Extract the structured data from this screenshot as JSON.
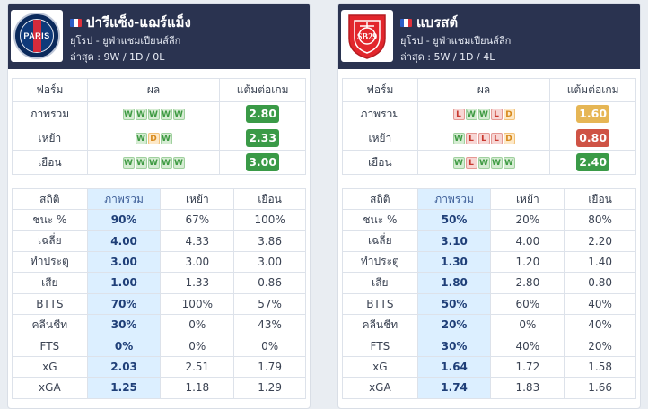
{
  "headers": {
    "form": {
      "col_form": "ฟอร์ม",
      "col_result": "ผล",
      "col_points": "แต้มต่อเกม"
    },
    "stats": {
      "col_stat": "สถิติ",
      "col_overall": "ภาพรวม",
      "col_home": "เหย้า",
      "col_away": "เยือน"
    }
  },
  "colors": {
    "green": "#3a9a47",
    "yellow": "#e6b655",
    "red": "#cf5345",
    "header_bg": "#2a3350",
    "highlight": "#dcefff"
  },
  "teams": [
    {
      "name": "ปารีแซ็ง-แฌร์แม็ง",
      "logo_icon": "psg-crest-icon",
      "logo_text": "PARIS",
      "flag": "france-flag-icon",
      "competition": "ยุโรป - ยูฟ่าแชมเปียนส์ลีก",
      "last": "ล่าสุด : 9W / 1D / 0L",
      "form": [
        {
          "label": "ภาพรวม",
          "results": [
            "W",
            "W",
            "W",
            "W",
            "W"
          ],
          "ppg": "2.80",
          "ppg_color": "green"
        },
        {
          "label": "เหย้า",
          "results": [
            "W",
            "D",
            "W"
          ],
          "ppg": "2.33",
          "ppg_color": "green"
        },
        {
          "label": "เยือน",
          "results": [
            "W",
            "W",
            "W",
            "W",
            "W"
          ],
          "ppg": "3.00",
          "ppg_color": "green"
        }
      ],
      "stats": [
        {
          "label": "ชนะ %",
          "overall": "90%",
          "home": "67%",
          "away": "100%"
        },
        {
          "label": "เฉลี่ย",
          "overall": "4.00",
          "home": "4.33",
          "away": "3.86"
        },
        {
          "label": "ทำประตู",
          "overall": "3.00",
          "home": "3.00",
          "away": "3.00"
        },
        {
          "label": "เสีย",
          "overall": "1.00",
          "home": "1.33",
          "away": "0.86"
        },
        {
          "label": "BTTS",
          "overall": "70%",
          "home": "100%",
          "away": "57%"
        },
        {
          "label": "คลีนชีท",
          "overall": "30%",
          "home": "0%",
          "away": "43%"
        },
        {
          "label": "FTS",
          "overall": "0%",
          "home": "0%",
          "away": "0%"
        },
        {
          "label": "xG",
          "overall": "2.03",
          "home": "2.51",
          "away": "1.79"
        },
        {
          "label": "xGA",
          "overall": "1.25",
          "home": "1.18",
          "away": "1.29"
        }
      ]
    },
    {
      "name": "แบรสต์",
      "logo_icon": "brest-crest-icon",
      "logo_text": "SB29",
      "flag": "france-flag-icon",
      "competition": "ยุโรป - ยูฟ่าแชมเปียนส์ลีก",
      "last": "ล่าสุด : 5W / 1D / 4L",
      "form": [
        {
          "label": "ภาพรวม",
          "results": [
            "L",
            "W",
            "W",
            "L",
            "D"
          ],
          "ppg": "1.60",
          "ppg_color": "yellow"
        },
        {
          "label": "เหย้า",
          "results": [
            "W",
            "L",
            "L",
            "L",
            "D"
          ],
          "ppg": "0.80",
          "ppg_color": "red"
        },
        {
          "label": "เยือน",
          "results": [
            "W",
            "L",
            "W",
            "W",
            "W"
          ],
          "ppg": "2.40",
          "ppg_color": "green"
        }
      ],
      "stats": [
        {
          "label": "ชนะ %",
          "overall": "50%",
          "home": "20%",
          "away": "80%"
        },
        {
          "label": "เฉลี่ย",
          "overall": "3.10",
          "home": "4.00",
          "away": "2.20"
        },
        {
          "label": "ทำประตู",
          "overall": "1.30",
          "home": "1.20",
          "away": "1.40"
        },
        {
          "label": "เสีย",
          "overall": "1.80",
          "home": "2.80",
          "away": "0.80"
        },
        {
          "label": "BTTS",
          "overall": "50%",
          "home": "60%",
          "away": "40%"
        },
        {
          "label": "คลีนชีท",
          "overall": "20%",
          "home": "0%",
          "away": "40%"
        },
        {
          "label": "FTS",
          "overall": "30%",
          "home": "40%",
          "away": "20%"
        },
        {
          "label": "xG",
          "overall": "1.64",
          "home": "1.72",
          "away": "1.58"
        },
        {
          "label": "xGA",
          "overall": "1.74",
          "home": "1.83",
          "away": "1.66"
        }
      ]
    }
  ]
}
